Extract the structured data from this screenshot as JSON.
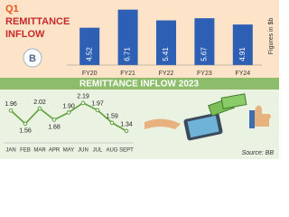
{
  "chart_data": [
    {
      "type": "bar",
      "title": [
        "Q1",
        "REMITTANCE",
        "INFLOW"
      ],
      "y_label": "Figures in $b",
      "categories": [
        "FY20",
        "FY21",
        "FY22",
        "FY23",
        "FY24"
      ],
      "values": [
        4.52,
        6.71,
        5.41,
        5.67,
        4.91
      ],
      "color": "#2d5fb5",
      "ylim": [
        0,
        7
      ]
    },
    {
      "type": "line",
      "title": "REMITTANCE INFLOW 2023",
      "source": "Source: BB",
      "categories": [
        "JAN",
        "FEB",
        "MAR",
        "APR",
        "MAY",
        "JUN",
        "JUL",
        "AUG",
        "SEPT"
      ],
      "values": [
        1.96,
        1.56,
        2.02,
        1.68,
        1.9,
        2.19,
        1.97,
        1.59,
        1.34
      ],
      "value_labels": [
        "1.96",
        "1.56",
        "2.02",
        "1.68",
        "1.90",
        "2.19",
        "1.97",
        "1.59",
        "1.34"
      ],
      "color": "#5e9e3c",
      "ylim": [
        1.2,
        2.35
      ]
    }
  ]
}
